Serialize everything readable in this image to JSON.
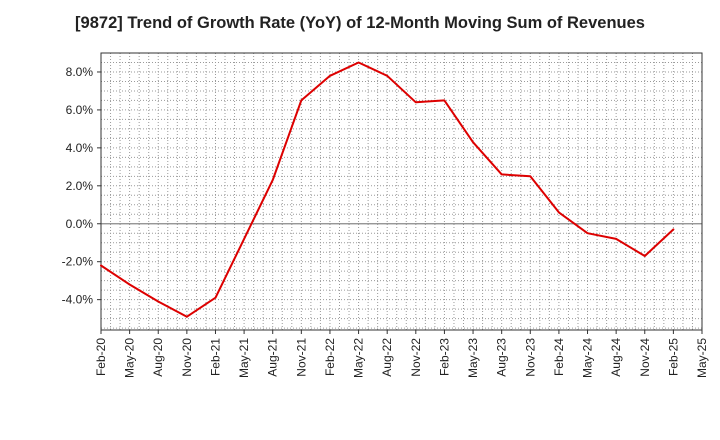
{
  "chart_data": {
    "type": "line",
    "title": "[9872]  Trend of Growth Rate (YoY) of 12-Month Moving Sum of Revenues",
    "xlabel": "",
    "ylabel": "",
    "ylim": [
      -5.6,
      9.0
    ],
    "y_ticks": [
      -4.0,
      -2.0,
      0.0,
      2.0,
      4.0,
      6.0,
      8.0
    ],
    "y_tick_labels": [
      "-4.0%",
      "-2.0%",
      "0.0%",
      "2.0%",
      "4.0%",
      "6.0%",
      "8.0%"
    ],
    "x_tick_labels": [
      "Feb-20",
      "May-20",
      "Aug-20",
      "Nov-20",
      "Feb-21",
      "May-21",
      "Aug-21",
      "Nov-21",
      "Feb-22",
      "May-22",
      "Aug-22",
      "Nov-22",
      "Feb-23",
      "May-23",
      "Aug-23",
      "Nov-23",
      "Feb-24",
      "May-24",
      "Aug-24",
      "Nov-24",
      "Feb-25",
      "May-25"
    ],
    "grid": true,
    "zero_line": true,
    "series": [
      {
        "color": "#dd0000",
        "values": [
          -2.2,
          -3.2,
          -4.1,
          -4.9,
          -3.9,
          -0.8,
          2.3,
          6.5,
          7.8,
          8.5,
          7.8,
          6.4,
          6.5,
          4.3,
          2.6,
          2.5,
          0.6,
          -0.5,
          -0.8,
          -1.7,
          -0.3
        ]
      }
    ]
  }
}
